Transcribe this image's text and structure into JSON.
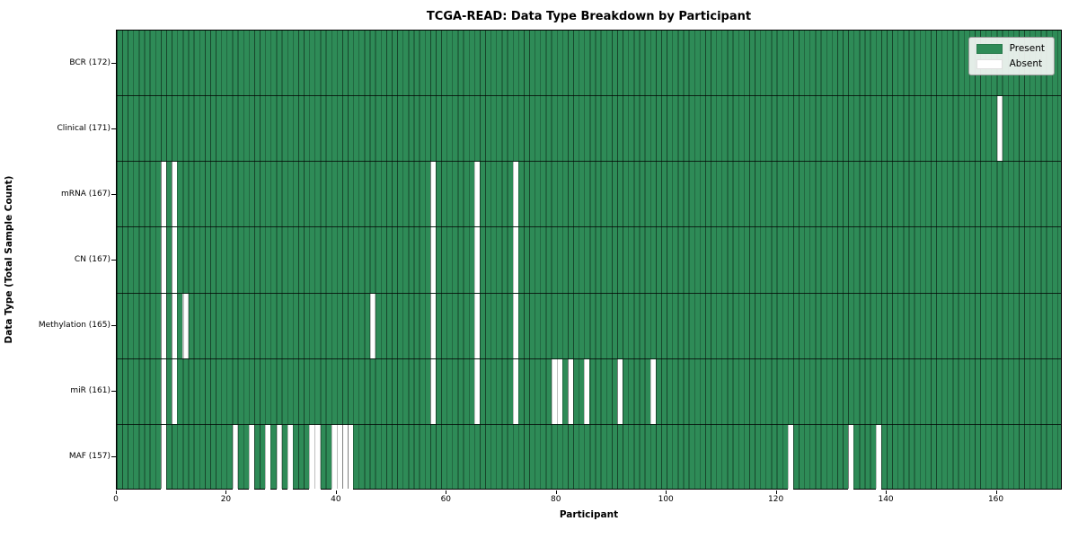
{
  "chart_data": {
    "type": "heatmap",
    "title": "TCGA-READ: Data Type Breakdown by Participant",
    "xlabel": "Participant",
    "ylabel": "Data Type (Total Sample Count)",
    "n_participants": 172,
    "x_ticks": [
      0,
      20,
      40,
      60,
      80,
      100,
      120,
      140,
      160
    ],
    "xlim": [
      0,
      172
    ],
    "grid": "cell-borders",
    "legend_position": "upper-right",
    "colors": {
      "present": "#2e8b57",
      "absent": "#ffffff"
    },
    "rows": [
      {
        "label": "BCR (172)",
        "name": "BCR",
        "present_count": 172,
        "absent_participants": []
      },
      {
        "label": "Clinical (171)",
        "name": "Clinical",
        "present_count": 171,
        "absent_participants": [
          160
        ]
      },
      {
        "label": "mRNA (167)",
        "name": "mRNA",
        "present_count": 167,
        "absent_participants": [
          8,
          10,
          57,
          65,
          72
        ]
      },
      {
        "label": "CN (167)",
        "name": "CN",
        "present_count": 167,
        "absent_participants": [
          8,
          10,
          57,
          65,
          72
        ]
      },
      {
        "label": "Methylation (165)",
        "name": "Methylation",
        "present_count": 165,
        "absent_participants": [
          8,
          10,
          12,
          46,
          57,
          65,
          72
        ]
      },
      {
        "label": "miR (161)",
        "name": "miR",
        "present_count": 161,
        "absent_participants": [
          8,
          10,
          57,
          65,
          72,
          79,
          80,
          82,
          85,
          91,
          97
        ]
      },
      {
        "label": "MAF (157)",
        "name": "MAF",
        "present_count": 157,
        "absent_participants": [
          8,
          21,
          24,
          27,
          29,
          31,
          35,
          36,
          39,
          40,
          41,
          42,
          122,
          133,
          138
        ]
      }
    ],
    "legend": [
      {
        "label": "Present",
        "color": "#2e8b57"
      },
      {
        "label": "Absent",
        "color": "#ffffff"
      }
    ]
  }
}
